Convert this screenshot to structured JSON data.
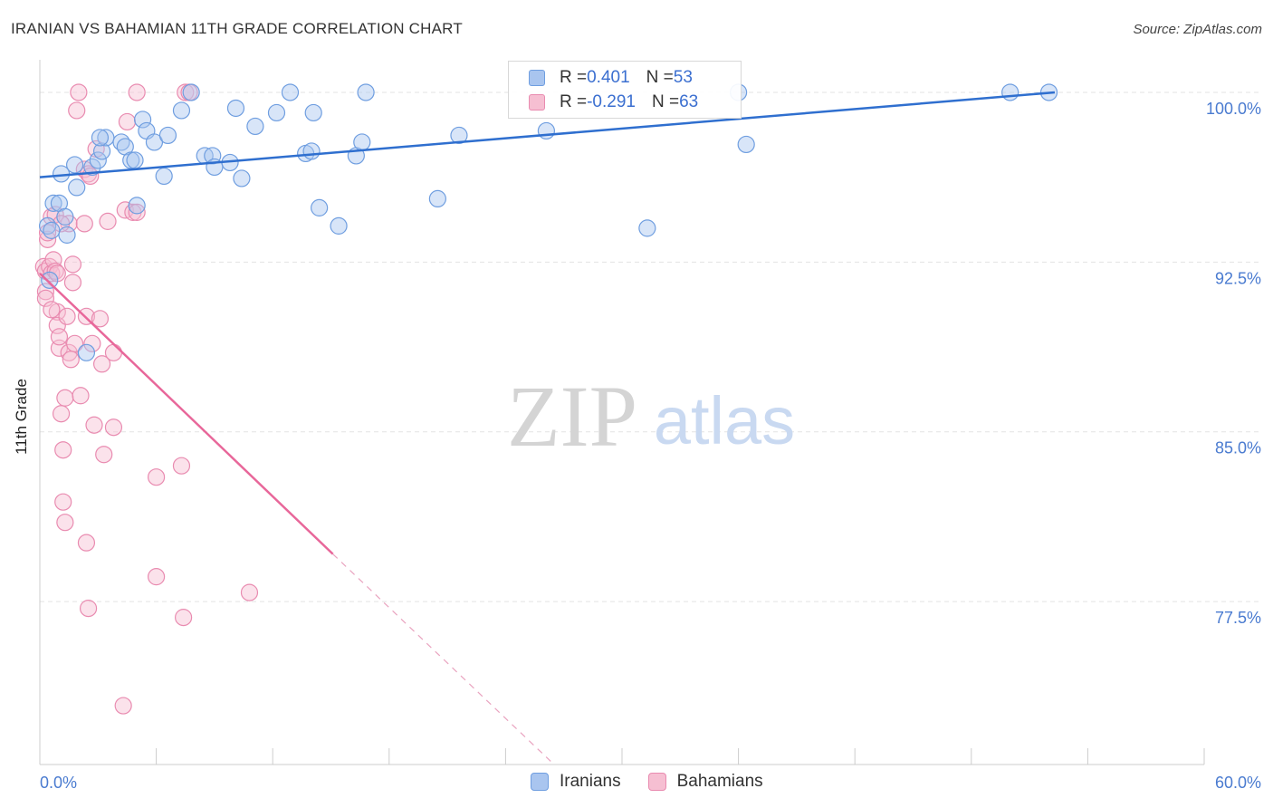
{
  "header": {
    "title": "IRANIAN VS BAHAMIAN 11TH GRADE CORRELATION CHART",
    "source": "Source: ZipAtlas.com"
  },
  "watermark": {
    "zip": "ZIP",
    "atlas": "atlas"
  },
  "legend": {
    "iranians": {
      "r_label": "R = ",
      "r_value": "0.401",
      "n_label": "N = ",
      "n_value": "53"
    },
    "bahamians": {
      "r_label": "R = ",
      "r_value": "-0.291",
      "n_label": "N = ",
      "n_value": "63"
    }
  },
  "bottom_legend": {
    "iranians": "Iranians",
    "bahamians": "Bahamians"
  },
  "colors": {
    "blue_fill": "#a9c5ef",
    "blue_stroke": "#6f9ee0",
    "blue_line": "#2f6fcf",
    "pink_fill": "#f6bfd2",
    "pink_stroke": "#e98bb0",
    "pink_line": "#e8679a",
    "tick_label": "#4a7bd0",
    "grid": "#e3e3e3"
  },
  "chart_data": {
    "type": "scatter",
    "title": "IRANIAN VS BAHAMIAN 11TH GRADE CORRELATION CHART",
    "xlabel": "",
    "ylabel": "11th Grade",
    "xlim": [
      0,
      60
    ],
    "ylim": [
      70.3,
      101.6
    ],
    "x_tick_labels": {
      "min": "0.0%",
      "max": "60.0%"
    },
    "y_ticks": [
      {
        "value": 100.0,
        "label": "100.0%"
      },
      {
        "value": 92.5,
        "label": "92.5%"
      },
      {
        "value": 85.0,
        "label": "85.0%"
      },
      {
        "value": 77.5,
        "label": "77.5%"
      }
    ],
    "series": [
      {
        "name": "Iranians",
        "R": 0.401,
        "N": 53,
        "trend": {
          "x": [
            0,
            52.3
          ],
          "y": [
            96.25,
            100.0
          ]
        },
        "points": [
          [
            0.4,
            94.1
          ],
          [
            0.6,
            93.9
          ],
          [
            0.7,
            95.1
          ],
          [
            1.0,
            95.1
          ],
          [
            1.1,
            96.4
          ],
          [
            1.3,
            94.5
          ],
          [
            1.4,
            93.7
          ],
          [
            1.8,
            96.8
          ],
          [
            1.9,
            95.8
          ],
          [
            2.7,
            96.7
          ],
          [
            3.0,
            97.0
          ],
          [
            3.2,
            97.4
          ],
          [
            3.4,
            98.0
          ],
          [
            3.1,
            98.0
          ],
          [
            4.2,
            97.8
          ],
          [
            4.4,
            97.6
          ],
          [
            4.7,
            97.0
          ],
          [
            4.9,
            97.0
          ],
          [
            5.3,
            98.8
          ],
          [
            5.5,
            98.3
          ],
          [
            5.9,
            97.8
          ],
          [
            6.4,
            96.3
          ],
          [
            6.6,
            98.1
          ],
          [
            7.3,
            99.2
          ],
          [
            7.8,
            100.0
          ],
          [
            8.5,
            97.2
          ],
          [
            8.9,
            97.2
          ],
          [
            9.0,
            96.7
          ],
          [
            9.8,
            96.9
          ],
          [
            10.1,
            99.3
          ],
          [
            10.4,
            96.2
          ],
          [
            11.1,
            98.5
          ],
          [
            12.2,
            99.1
          ],
          [
            12.9,
            100.0
          ],
          [
            13.7,
            97.3
          ],
          [
            14.0,
            97.4
          ],
          [
            14.1,
            99.1
          ],
          [
            14.4,
            94.9
          ],
          [
            15.4,
            94.1
          ],
          [
            16.3,
            97.2
          ],
          [
            16.6,
            97.8
          ],
          [
            16.8,
            100.0
          ],
          [
            20.5,
            95.3
          ],
          [
            21.6,
            98.1
          ],
          [
            26.1,
            98.3
          ],
          [
            31.3,
            94.0
          ],
          [
            36.0,
            100.0
          ],
          [
            36.4,
            97.7
          ],
          [
            50.0,
            100.0
          ],
          [
            52.0,
            100.0
          ],
          [
            2.4,
            88.5
          ],
          [
            0.5,
            91.7
          ],
          [
            5.0,
            95.0
          ]
        ]
      },
      {
        "name": "Bahamians",
        "R": -0.291,
        "N": 63,
        "trend": {
          "x": [
            0,
            15.1
          ],
          "y": [
            92.0,
            79.6
          ]
        },
        "trend_dashed": {
          "x": [
            15.1,
            26.5
          ],
          "y": [
            79.6,
            70.3
          ]
        },
        "points": [
          [
            0.2,
            92.3
          ],
          [
            0.3,
            92.1
          ],
          [
            0.3,
            91.2
          ],
          [
            0.3,
            90.9
          ],
          [
            0.4,
            93.5
          ],
          [
            0.4,
            93.8
          ],
          [
            0.5,
            92.3
          ],
          [
            0.6,
            92.0
          ],
          [
            0.6,
            94.5
          ],
          [
            0.7,
            92.6
          ],
          [
            0.8,
            92.1
          ],
          [
            0.8,
            94.6
          ],
          [
            0.9,
            92.0
          ],
          [
            0.9,
            90.3
          ],
          [
            0.9,
            89.7
          ],
          [
            1.0,
            88.7
          ],
          [
            1.0,
            89.2
          ],
          [
            1.1,
            85.8
          ],
          [
            1.2,
            84.2
          ],
          [
            1.2,
            81.9
          ],
          [
            1.3,
            81.0
          ],
          [
            1.3,
            86.5
          ],
          [
            1.4,
            90.1
          ],
          [
            1.5,
            94.2
          ],
          [
            1.5,
            88.5
          ],
          [
            1.6,
            88.2
          ],
          [
            1.7,
            92.4
          ],
          [
            1.7,
            91.6
          ],
          [
            1.8,
            88.9
          ],
          [
            1.9,
            99.2
          ],
          [
            2.0,
            100.0
          ],
          [
            2.1,
            86.6
          ],
          [
            2.3,
            94.2
          ],
          [
            2.3,
            96.6
          ],
          [
            2.4,
            90.1
          ],
          [
            2.4,
            80.1
          ],
          [
            2.5,
            77.2
          ],
          [
            2.5,
            96.4
          ],
          [
            2.6,
            96.3
          ],
          [
            2.7,
            88.9
          ],
          [
            2.8,
            85.3
          ],
          [
            2.9,
            97.5
          ],
          [
            3.1,
            90.0
          ],
          [
            3.2,
            88.0
          ],
          [
            3.3,
            84.0
          ],
          [
            3.5,
            94.3
          ],
          [
            3.8,
            85.2
          ],
          [
            3.8,
            88.5
          ],
          [
            4.3,
            72.9
          ],
          [
            4.4,
            94.8
          ],
          [
            4.5,
            98.7
          ],
          [
            4.8,
            94.7
          ],
          [
            5.0,
            100.0
          ],
          [
            5.0,
            94.7
          ],
          [
            6.0,
            83.0
          ],
          [
            6.0,
            78.6
          ],
          [
            7.3,
            83.5
          ],
          [
            7.4,
            76.8
          ],
          [
            7.5,
            100.0
          ],
          [
            7.7,
            100.0
          ],
          [
            10.8,
            77.9
          ],
          [
            0.6,
            90.4
          ],
          [
            1.1,
            94.2
          ]
        ]
      }
    ]
  }
}
